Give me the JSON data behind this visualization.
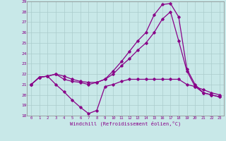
{
  "xlabel": "Windchill (Refroidissement éolien,°C)",
  "xlim": [
    -0.5,
    23.5
  ],
  "ylim": [
    18,
    29
  ],
  "bg_color": "#c8e8e8",
  "line_color": "#880088",
  "grid_color": "#aacccc",
  "series": [
    {
      "x": [
        0,
        1,
        2,
        3,
        4,
        5,
        6,
        7,
        8,
        9,
        10,
        11,
        12,
        13,
        14,
        15,
        16,
        17,
        18,
        19,
        20,
        21,
        22,
        23
      ],
      "y": [
        21,
        21.7,
        21.8,
        22.0,
        21.8,
        21.5,
        21.3,
        21.2,
        21.2,
        21.5,
        22.3,
        23.2,
        24.2,
        25.2,
        26.0,
        27.7,
        28.7,
        28.8,
        27.5,
        22.5,
        21.0,
        20.2,
        20.0,
        19.8
      ]
    },
    {
      "x": [
        0,
        1,
        2,
        3,
        4,
        5,
        6,
        7,
        8,
        9,
        10,
        11,
        12,
        13,
        14,
        15,
        16,
        17,
        18,
        19,
        20,
        21,
        22,
        23
      ],
      "y": [
        21,
        21.7,
        21.8,
        22.0,
        21.5,
        21.3,
        21.2,
        21.0,
        21.2,
        21.5,
        22.0,
        22.8,
        23.5,
        24.3,
        25.0,
        26.0,
        27.3,
        28.0,
        25.2,
        22.3,
        20.8,
        20.2,
        20.0,
        19.8
      ]
    },
    {
      "x": [
        0,
        1,
        2,
        3,
        4,
        5,
        6,
        7,
        8,
        9,
        10,
        11,
        12,
        13,
        14,
        15,
        16,
        17,
        18,
        19,
        20,
        21,
        22,
        23
      ],
      "y": [
        21,
        21.7,
        21.8,
        21.0,
        20.3,
        19.5,
        18.8,
        18.2,
        18.5,
        20.8,
        21.0,
        21.3,
        21.5,
        21.5,
        21.5,
        21.5,
        21.5,
        21.5,
        21.5,
        21.0,
        20.8,
        20.5,
        20.2,
        20.0
      ]
    }
  ]
}
